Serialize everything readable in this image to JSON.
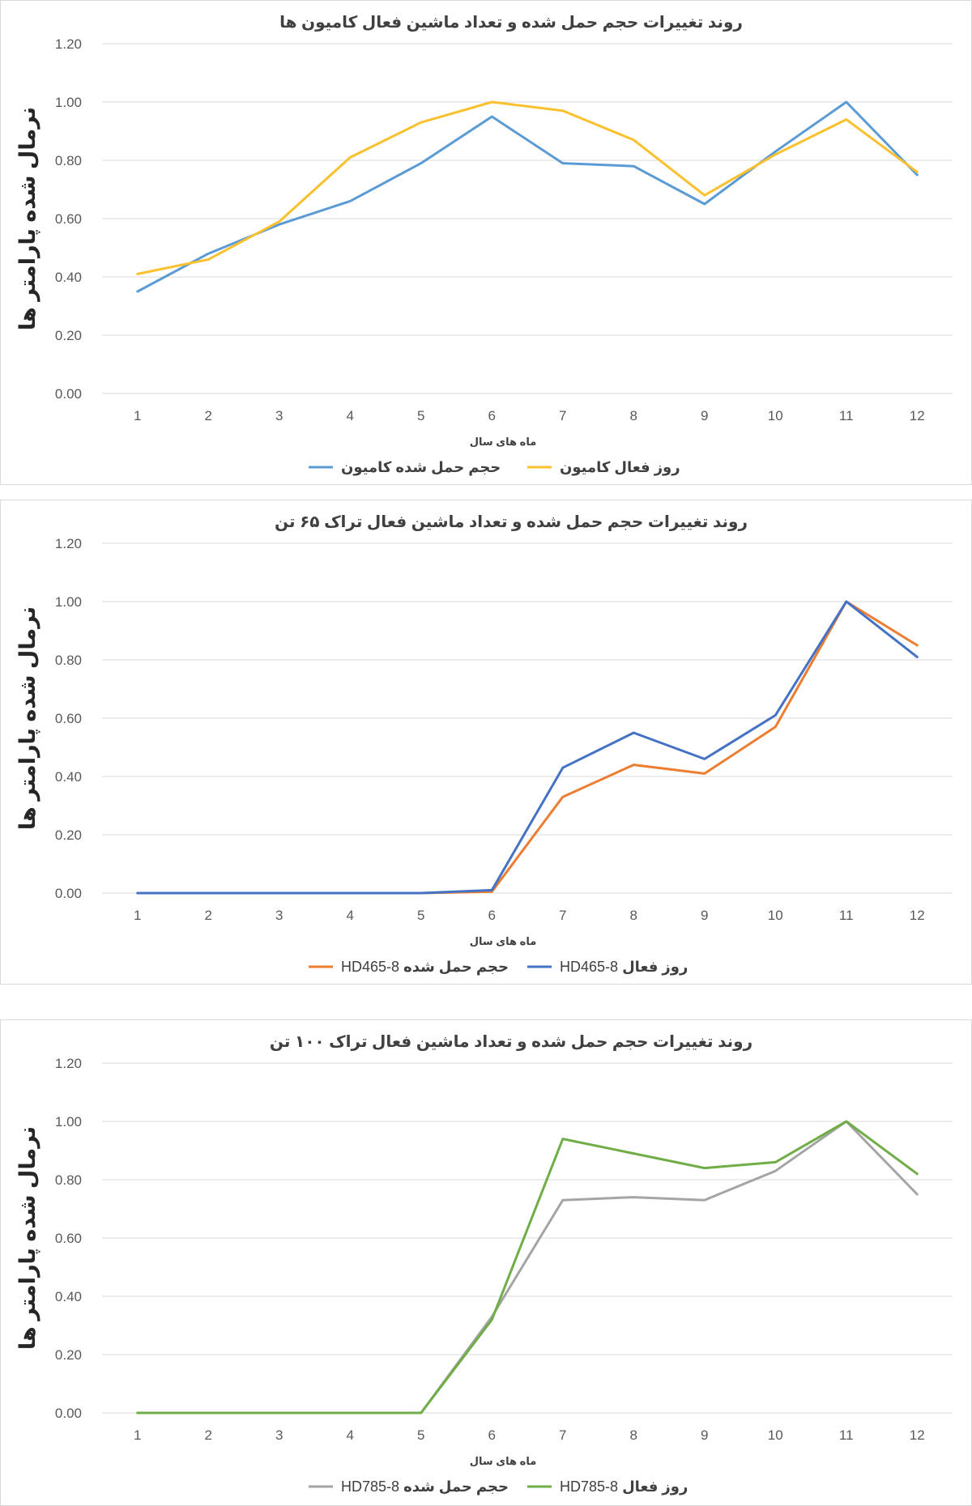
{
  "charts": [
    {
      "id": "p0",
      "chart_data": {
        "type": "line",
        "title": "روند تغییرات حجم حمل شده و تعداد ماشین فعال کامیون ها",
        "xlabel": "ماه های سال",
        "ylabel": "نرمال شده پارامتر ها",
        "categories": [
          "1",
          "2",
          "3",
          "4",
          "5",
          "6",
          "7",
          "8",
          "9",
          "10",
          "11",
          "12"
        ],
        "ylim": [
          0,
          1.2
        ],
        "yticks": [
          "0.00",
          "0.20",
          "0.40",
          "0.60",
          "0.80",
          "1.00",
          "1.20"
        ],
        "series": [
          {
            "name": "حجم حمل شده کامیون",
            "color": "#5b9bd5",
            "values": [
              0.35,
              0.48,
              0.58,
              0.66,
              0.79,
              0.95,
              0.79,
              0.78,
              0.65,
              0.83,
              1.0,
              0.75
            ]
          },
          {
            "name": "روز فعال کامیون",
            "color": "#fbc02d",
            "values": [
              0.41,
              0.46,
              0.59,
              0.81,
              0.93,
              1.0,
              0.97,
              0.87,
              0.68,
              0.82,
              0.94,
              0.76
            ]
          }
        ]
      }
    },
    {
      "id": "p1",
      "chart_data": {
        "type": "line",
        "title": "روند تغییرات حجم حمل شده و تعداد ماشین فعال تراک ۶۵ تن",
        "xlabel": "ماه های سال",
        "ylabel": "نرمال شده پارامتر ها",
        "categories": [
          "1",
          "2",
          "3",
          "4",
          "5",
          "6",
          "7",
          "8",
          "9",
          "10",
          "11",
          "12"
        ],
        "ylim": [
          0,
          1.2
        ],
        "yticks": [
          "0.00",
          "0.20",
          "0.40",
          "0.60",
          "0.80",
          "1.00",
          "1.20"
        ],
        "series": [
          {
            "name": "حجم حمل شده",
            "model": "HD465-8",
            "color": "#ed7d31",
            "values": [
              0,
              0,
              0,
              0,
              0,
              0.005,
              0.33,
              0.44,
              0.41,
              0.57,
              1.0,
              0.85
            ]
          },
          {
            "name": "روز فعال",
            "model": "HD465-8",
            "color": "#4472c4",
            "values": [
              0,
              0,
              0,
              0,
              0,
              0.01,
              0.43,
              0.55,
              0.46,
              0.61,
              1.0,
              0.81
            ]
          }
        ]
      }
    },
    {
      "id": "p2",
      "chart_data": {
        "type": "line",
        "title": "روند تغییرات حجم حمل شده و تعداد ماشین فعال تراک ۱۰۰ تن",
        "xlabel": "ماه های سال",
        "ylabel": "نرمال شده پارامتر ها",
        "categories": [
          "1",
          "2",
          "3",
          "4",
          "5",
          "6",
          "7",
          "8",
          "9",
          "10",
          "11",
          "12"
        ],
        "ylim": [
          0,
          1.2
        ],
        "yticks": [
          "0.00",
          "0.20",
          "0.40",
          "0.60",
          "0.80",
          "1.00",
          "1.20"
        ],
        "series": [
          {
            "name": "حجم حمل شده",
            "model": "HD785-8",
            "color": "#a5a5a5",
            "values": [
              0,
              0,
              0,
              0,
              0,
              0.33,
              0.73,
              0.74,
              0.73,
              0.83,
              1.0,
              0.75
            ]
          },
          {
            "name": "روز فعال",
            "model": "HD785-8",
            "color": "#70ad47",
            "values": [
              0,
              0,
              0,
              0,
              0,
              0.32,
              0.94,
              0.89,
              0.84,
              0.86,
              1.0,
              0.82
            ]
          }
        ]
      }
    }
  ]
}
